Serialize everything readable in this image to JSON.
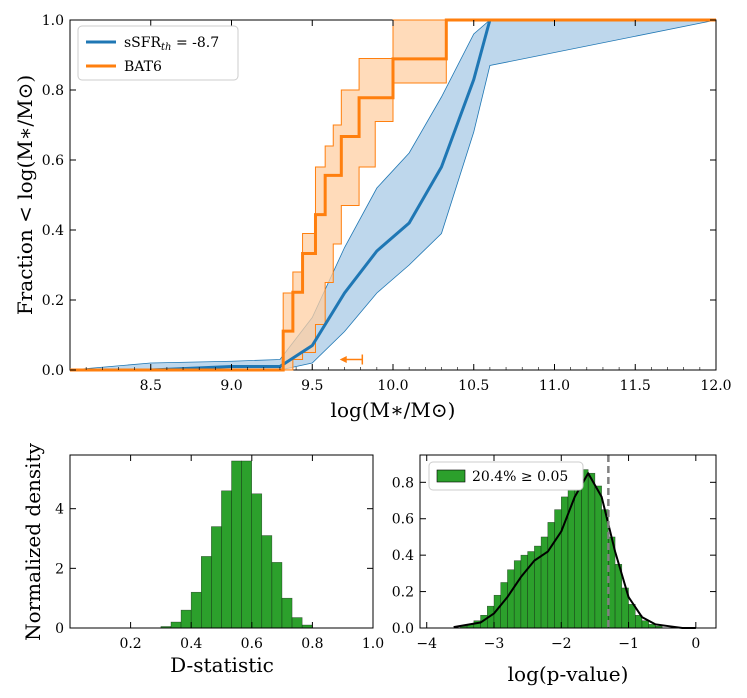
{
  "colors": {
    "model": "#1f77b4",
    "model_fill": "#b7d3ea",
    "bat6": "#ff7f0e",
    "bat6_fill": "#ffcfa3",
    "hist": "#2ca02c",
    "dash": "#808080"
  },
  "chart_data": [
    {
      "type": "line",
      "id": "cdf",
      "xlabel": "log(M∗/M⊙)",
      "ylabel": "Fraction < log(M∗/M⊙)",
      "xlim": [
        8.0,
        12.0
      ],
      "ylim": [
        0.0,
        1.0
      ],
      "xticks": [
        "8.5",
        "9.0",
        "9.5",
        "10.0",
        "10.5",
        "11.0",
        "11.5",
        "12.0"
      ],
      "yticks": [
        "0.0",
        "0.2",
        "0.4",
        "0.6",
        "0.8",
        "1.0"
      ],
      "legend_position": "top-left",
      "series": [
        {
          "name": "sSFRth = -8.7",
          "legend_main": "sSFR",
          "legend_sub": "th",
          "legend_rest": " = -8.7",
          "x": [
            8.0,
            8.5,
            9.0,
            9.3,
            9.5,
            9.7,
            9.9,
            10.1,
            10.3,
            10.5,
            10.6,
            12.0
          ],
          "y": [
            0.0,
            0.0,
            0.01,
            0.01,
            0.07,
            0.22,
            0.34,
            0.42,
            0.58,
            0.83,
            1.0,
            1.0
          ],
          "lower": [
            0.0,
            0.0,
            0.0,
            0.0,
            0.02,
            0.11,
            0.22,
            0.3,
            0.39,
            0.68,
            0.87,
            1.0
          ],
          "upper": [
            0.0,
            0.02,
            0.025,
            0.03,
            0.15,
            0.35,
            0.52,
            0.62,
            0.78,
            0.96,
            1.0,
            1.0
          ]
        },
        {
          "name": "BAT6",
          "x": [
            8.0,
            9.32,
            9.38,
            9.44,
            9.52,
            9.58,
            9.63,
            9.68,
            9.79,
            9.89,
            10.0,
            10.33,
            12.0
          ],
          "y": [
            0.0,
            0.111,
            0.222,
            0.333,
            0.444,
            0.556,
            0.556,
            0.667,
            0.778,
            0.778,
            0.889,
            1.0,
            1.0
          ],
          "lower": [
            0.0,
            0.0,
            0.03,
            0.05,
            0.13,
            0.25,
            0.36,
            0.47,
            0.58,
            0.71,
            0.82,
            1.0,
            1.0
          ],
          "upper": [
            0.0,
            0.22,
            0.28,
            0.39,
            0.58,
            0.64,
            0.7,
            0.8,
            0.89,
            0.89,
            1.0,
            1.0,
            1.0
          ]
        }
      ],
      "annotation": {
        "type": "upper-limit-arrow",
        "x_from": 9.81,
        "x_to": 9.67,
        "y": 0.03
      }
    },
    {
      "type": "bar",
      "id": "dstat",
      "xlabel": "D-statistic",
      "ylabel": "Normalized density",
      "xlim": [
        0.0,
        1.0
      ],
      "ylim": [
        0.0,
        5.8
      ],
      "xticks": [
        "0.2",
        "0.4",
        "0.6",
        "0.8",
        "1.0"
      ],
      "yticks": [
        "0",
        "2",
        "4"
      ],
      "bin_width": 0.0333,
      "bin_start": 0.3,
      "values": [
        0.05,
        0.2,
        0.6,
        1.2,
        2.4,
        3.4,
        4.6,
        5.6,
        5.6,
        4.5,
        3.1,
        2.2,
        1.0,
        0.35,
        0.1
      ]
    },
    {
      "type": "bar",
      "id": "pval",
      "xlabel": "log(p-value)",
      "xlim": [
        -4.1,
        0.3
      ],
      "ylim": [
        0.0,
        0.95
      ],
      "xticks": [
        "-4",
        "-3",
        "-2",
        "-1",
        "0"
      ],
      "yticks": [
        "0.0",
        "0.2",
        "0.4",
        "0.6",
        "0.8"
      ],
      "threshold_x": -1.3,
      "bin_width": 0.1,
      "bin_start": -3.5,
      "values": [
        0.01,
        0.02,
        0.04,
        0.07,
        0.12,
        0.18,
        0.25,
        0.32,
        0.37,
        0.4,
        0.42,
        0.45,
        0.5,
        0.58,
        0.65,
        0.72,
        0.78,
        0.83,
        0.87,
        0.85,
        0.78,
        0.65,
        0.5,
        0.35,
        0.22,
        0.13,
        0.07,
        0.04,
        0.02,
        0.01,
        0.0,
        0.0,
        0.0,
        0.0,
        0.0
      ],
      "kde_x": [
        -3.6,
        -3.2,
        -3.0,
        -2.8,
        -2.6,
        -2.4,
        -2.2,
        -2.0,
        -1.8,
        -1.6,
        -1.4,
        -1.2,
        -1.0,
        -0.8,
        -0.6,
        -0.4,
        -0.2,
        0.0
      ],
      "kde_y": [
        0.005,
        0.03,
        0.08,
        0.17,
        0.28,
        0.37,
        0.42,
        0.53,
        0.72,
        0.85,
        0.72,
        0.42,
        0.17,
        0.06,
        0.02,
        0.01,
        0.0,
        0.0
      ],
      "legend_text": "20.4% ≥ 0.05"
    }
  ]
}
